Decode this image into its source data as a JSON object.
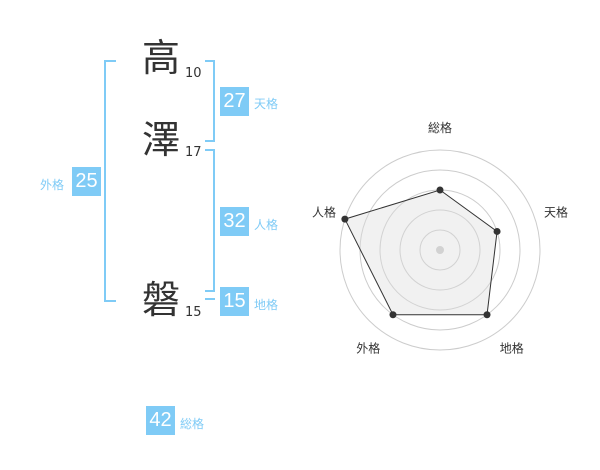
{
  "name": {
    "chars": [
      {
        "char": "高",
        "strokes": "10"
      },
      {
        "char": "澤",
        "strokes": "17"
      },
      {
        "char": "磐",
        "strokes": "15"
      }
    ]
  },
  "results": {
    "tenkaku": {
      "value": "27",
      "label": "天格"
    },
    "jinkaku": {
      "value": "32",
      "label": "人格"
    },
    "chikaku": {
      "value": "15",
      "label": "地格"
    },
    "gaikaku": {
      "value": "25",
      "label": "外格"
    },
    "soukaku": {
      "value": "42",
      "label": "総格"
    }
  },
  "accent_color": "#7fcbf6",
  "chart_data": {
    "type": "radar",
    "axes": [
      "総格",
      "天格",
      "地格",
      "外格",
      "人格"
    ],
    "values": [
      3,
      3,
      4,
      4,
      5
    ],
    "range": [
      0,
      5
    ],
    "rings": 5
  }
}
